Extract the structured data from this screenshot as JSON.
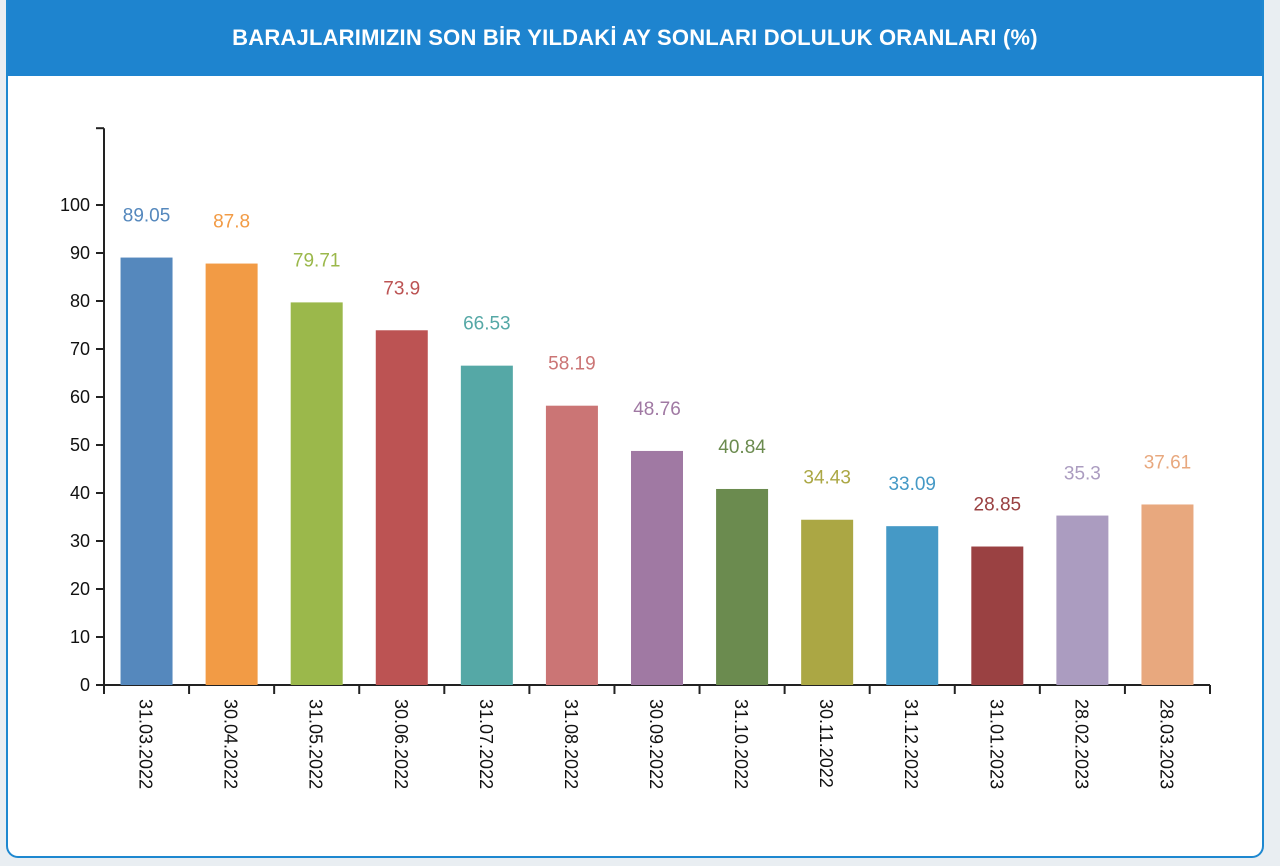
{
  "header": {
    "title": "BARAJLARIMIZIN SON BİR YILDAKİ AY SONLARI DOLULUK ORANLARI (%)"
  },
  "chart_data": {
    "type": "bar",
    "title": "BARAJLARIMIZIN SON BİR YILDAKİ AY SONLARI DOLULUK ORANLARI (%)",
    "categories": [
      "31.03.2022",
      "30.04.2022",
      "31.05.2022",
      "30.06.2022",
      "31.07.2022",
      "31.08.2022",
      "30.09.2022",
      "31.10.2022",
      "30.11.2022",
      "31.12.2022",
      "31.01.2023",
      "28.02.2023",
      "28.03.2023"
    ],
    "values": [
      89.05,
      87.8,
      79.71,
      73.9,
      66.53,
      58.19,
      48.76,
      40.84,
      34.43,
      33.09,
      28.85,
      35.3,
      37.61
    ],
    "value_labels": [
      "89.05",
      "87.8",
      "79.71",
      "73.9",
      "66.53",
      "58.19",
      "48.76",
      "40.84",
      "34.43",
      "33.09",
      "28.85",
      "35.3",
      "37.61"
    ],
    "colors": [
      "#5588bd",
      "#f29b45",
      "#9bb84b",
      "#bc5353",
      "#55a8a6",
      "#cb7575",
      "#a079a3",
      "#6b8b4f",
      "#aba744",
      "#4599c6",
      "#9a4142",
      "#ab9cc0",
      "#e8a87e"
    ],
    "yticks": [
      0,
      10,
      20,
      30,
      40,
      50,
      60,
      70,
      80,
      90,
      100
    ],
    "ylim": [
      0,
      116
    ],
    "xlabel": "",
    "ylabel": "",
    "grid": false,
    "legend": "none"
  }
}
